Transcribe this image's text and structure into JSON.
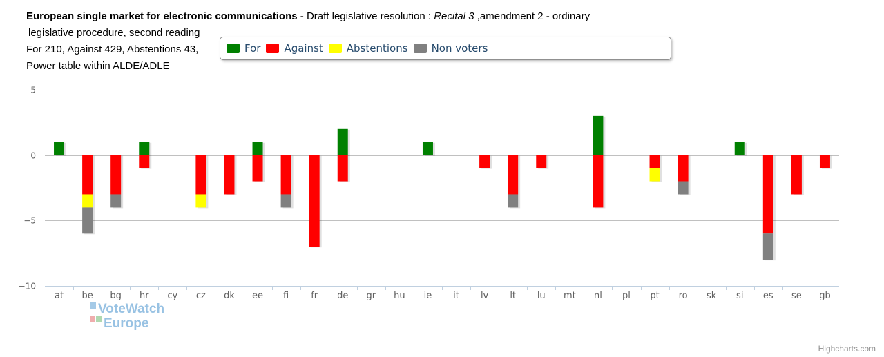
{
  "title": {
    "bold_part": "European single market for electronic communications",
    "mid_part": "  - Draft legislative resolution : ",
    "italic_part": " Recital 3",
    "tail_part": " ,amendment 2 - ordinary",
    "line2": "legislative procedure, second reading",
    "line3": "For 210, Against 429, Abstentions 43,",
    "line4": "Power table within ALDE/ADLE"
  },
  "legend": [
    {
      "name": "For",
      "color": "#008000"
    },
    {
      "name": "Against",
      "color": "#ff0000"
    },
    {
      "name": "Abstentions",
      "color": "#ffff00"
    },
    {
      "name": "Non voters",
      "color": "#808080"
    }
  ],
  "watermark": {
    "line1": "VoteWatch",
    "line2": "Europe"
  },
  "credits": "Highcharts.com",
  "chart_data": {
    "type": "bar",
    "stacked": true,
    "categories": [
      "at",
      "be",
      "bg",
      "hr",
      "cy",
      "cz",
      "dk",
      "ee",
      "fi",
      "fr",
      "de",
      "gr",
      "hu",
      "ie",
      "it",
      "lv",
      "lt",
      "lu",
      "mt",
      "nl",
      "pl",
      "pt",
      "ro",
      "sk",
      "si",
      "es",
      "se",
      "gb"
    ],
    "series": [
      {
        "name": "For",
        "color": "#008000",
        "values": [
          1,
          0,
          0,
          1,
          0,
          0,
          0,
          1,
          0,
          0,
          2,
          0,
          0,
          1,
          0,
          0,
          0,
          0,
          0,
          3,
          0,
          0,
          0,
          0,
          1,
          0,
          0,
          0
        ]
      },
      {
        "name": "Against",
        "color": "#ff0000",
        "values": [
          0,
          -3,
          -3,
          -1,
          0,
          -3,
          -3,
          -2,
          -3,
          -7,
          -2,
          0,
          0,
          0,
          0,
          -1,
          -3,
          -1,
          0,
          -4,
          0,
          -1,
          -2,
          0,
          0,
          -6,
          -3,
          -1
        ]
      },
      {
        "name": "Abstentions",
        "color": "#ffff00",
        "values": [
          0,
          -1,
          0,
          0,
          0,
          -1,
          0,
          0,
          0,
          0,
          0,
          0,
          0,
          0,
          0,
          0,
          0,
          0,
          0,
          0,
          0,
          -1,
          0,
          0,
          0,
          0,
          0,
          0
        ]
      },
      {
        "name": "Non voters",
        "color": "#808080",
        "values": [
          0,
          -2,
          -1,
          0,
          0,
          0,
          0,
          0,
          -1,
          0,
          0,
          0,
          0,
          0,
          0,
          0,
          -1,
          0,
          0,
          0,
          0,
          0,
          -1,
          0,
          0,
          -2,
          0,
          0
        ]
      }
    ],
    "yticks": [
      5,
      0,
      -5,
      -10
    ],
    "ylim": [
      -10,
      5
    ],
    "grid": true
  }
}
